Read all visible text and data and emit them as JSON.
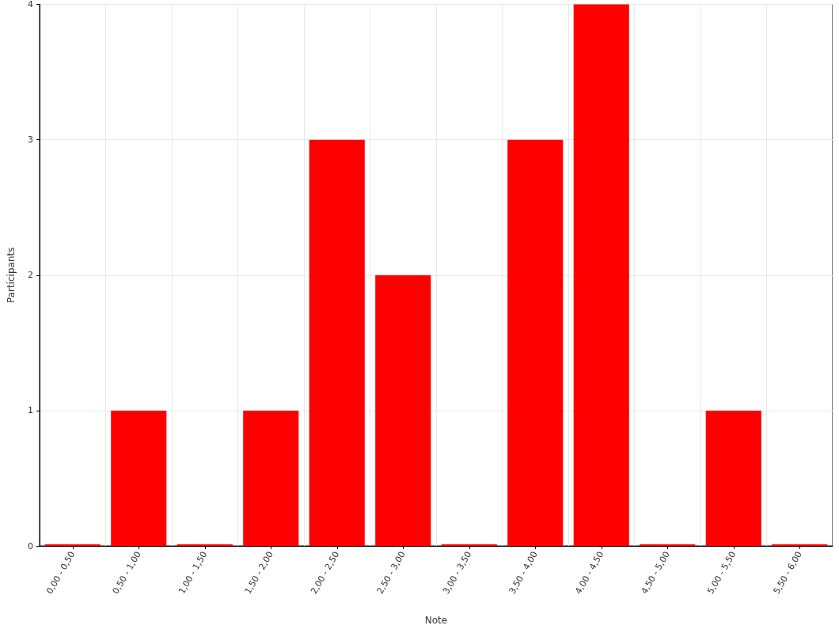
{
  "chart_data": {
    "type": "bar",
    "xlabel": "Note",
    "ylabel": "Participants",
    "categories": [
      "0,00 - 0,50",
      "0,50 - 1,00",
      "1,00 - 1,50",
      "1,50 - 2,00",
      "2,00 - 2,50",
      "2,50 - 3,00",
      "3,00 - 3,50",
      "3,50 - 4,00",
      "4,00 - 4,50",
      "4,50 - 5,00",
      "5,00 - 5,50",
      "5,50 - 6,00"
    ],
    "values": [
      0,
      1,
      0,
      1,
      3,
      2,
      0,
      3,
      4,
      0,
      1,
      0
    ],
    "color": "#ff0000",
    "ylim": [
      0,
      4
    ],
    "yticks": [
      0,
      1,
      2,
      3,
      4
    ],
    "grid": true
  }
}
